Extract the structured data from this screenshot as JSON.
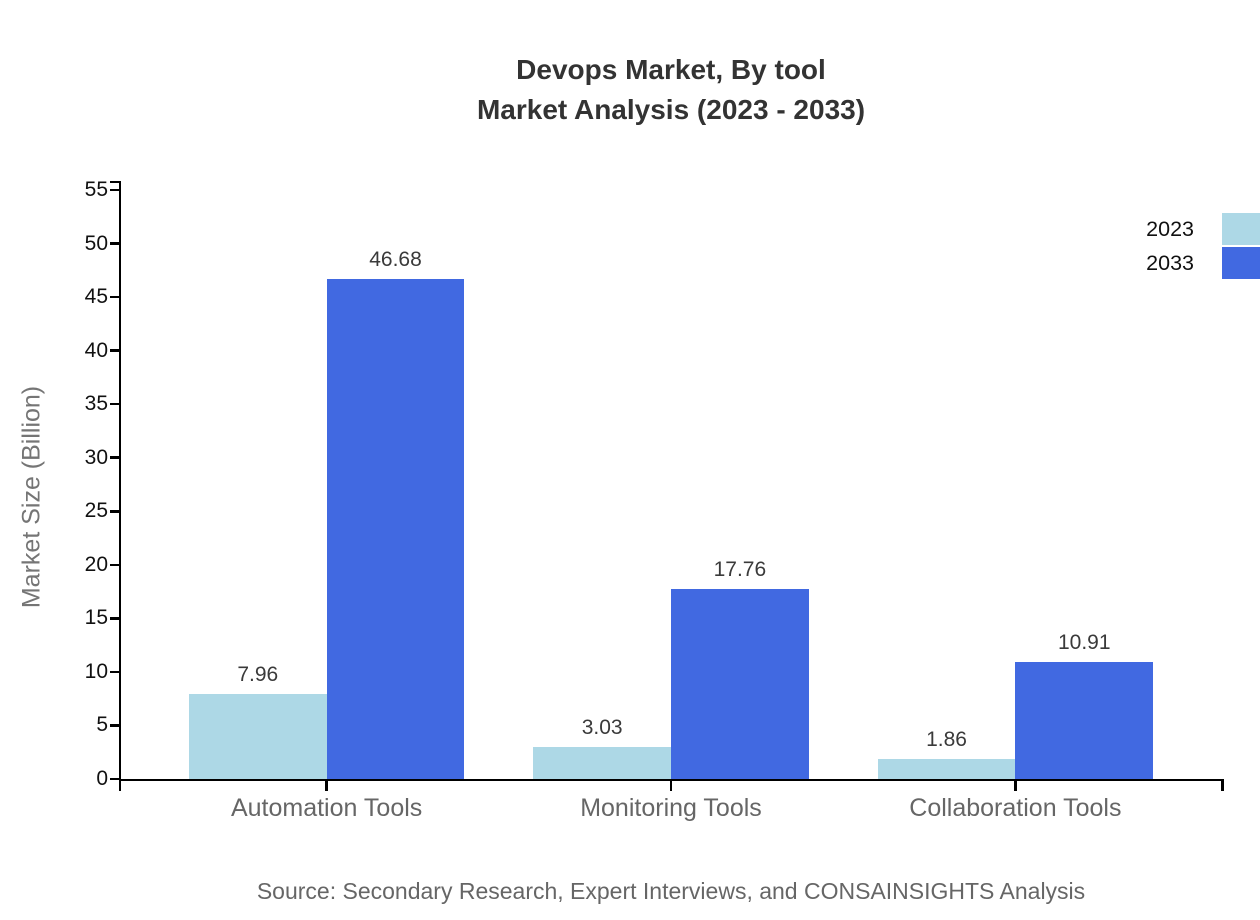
{
  "chart": {
    "title_line1": "Devops Market, By tool",
    "title_line2": "Market Analysis (2023 - 2033)",
    "ylabel": "Market Size (Billion)",
    "source": "Source: Secondary Research, Expert Interviews, and CONSAINSIGHTS Analysis"
  },
  "chart_data": {
    "type": "bar",
    "title": "Devops Market, By tool — Market Analysis (2023 - 2033)",
    "categories": [
      "Automation Tools",
      "Monitoring Tools",
      "Collaboration Tools"
    ],
    "series": [
      {
        "name": "2023",
        "color": "#ADD8E6",
        "values": [
          7.96,
          3.03,
          1.86
        ]
      },
      {
        "name": "2033",
        "color": "#4169E1",
        "values": [
          46.68,
          17.76,
          10.91
        ]
      }
    ],
    "xlabel": "",
    "ylabel": "Market Size (Billion)",
    "ylim": [
      0,
      55
    ],
    "yticks": [
      0,
      5,
      10,
      15,
      20,
      25,
      30,
      35,
      40,
      45,
      50,
      55
    ],
    "grid": false,
    "legend_position": "top-right",
    "value_labels": true,
    "axis_color": "#000000",
    "text_colors": {
      "title": "#333333",
      "tick_labels": "#111111",
      "category_labels": "#666666",
      "value_labels": "#3a3a3a",
      "source": "#666666",
      "y_axis_title": "#757575"
    },
    "source": "Source: Secondary Research, Expert Interviews, and CONSAINSIGHTS Analysis"
  }
}
